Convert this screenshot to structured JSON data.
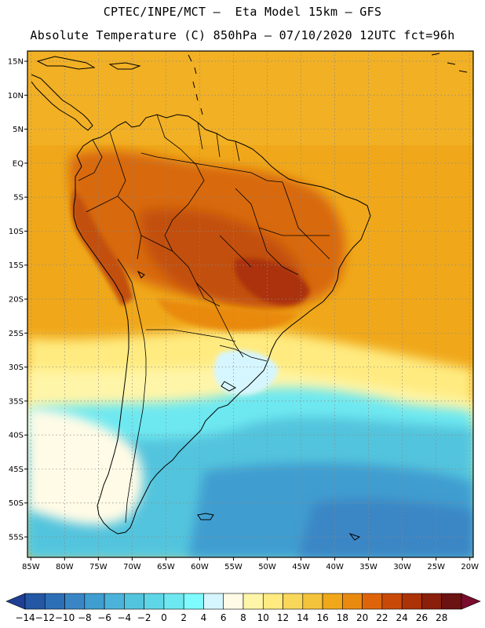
{
  "header": {
    "line1": "CPTEC/INPE/MCT –  Eta Model 15km – GFS",
    "line2": "Absolute Temperature (C) 850hPa – 07/10/2020 12UTC fct=96h"
  },
  "map": {
    "lat_ticks": [
      "15N",
      "10N",
      "5N",
      "EQ",
      "5S",
      "10S",
      "15S",
      "20S",
      "25S",
      "30S",
      "35S",
      "40S",
      "45S",
      "50S",
      "55S"
    ],
    "lon_ticks": [
      "85W",
      "80W",
      "75W",
      "70W",
      "65W",
      "60W",
      "55W",
      "50W",
      "45W",
      "40W",
      "35W",
      "30W",
      "25W",
      "20W"
    ],
    "lat_values": [
      15,
      10,
      5,
      0,
      -5,
      -10,
      -15,
      -20,
      -25,
      -30,
      -35,
      -40,
      -45,
      -50,
      -55
    ],
    "lon_values": [
      -85,
      -80,
      -75,
      -70,
      -65,
      -60,
      -55,
      -50,
      -45,
      -40,
      -35,
      -30,
      -25,
      -20
    ],
    "extent": {
      "lon_min": -85.5,
      "lon_max": -19.5,
      "lat_min": -58,
      "lat_max": 16.5
    }
  },
  "colorbar": {
    "labels": [
      "-14",
      "-12",
      "-10",
      "-8",
      "-6",
      "-4",
      "-2",
      "0",
      "2",
      "4",
      "6",
      "8",
      "10",
      "12",
      "14",
      "16",
      "18",
      "20",
      "22",
      "24",
      "26",
      "28"
    ],
    "colors": [
      "#1f3f94",
      "#2458a4",
      "#2c6fb6",
      "#3a86c5",
      "#3f9dd0",
      "#4bb3d9",
      "#53c4dd",
      "#5ed6e8",
      "#6ee8f0",
      "#7ffbff",
      "#d5f6ff",
      "#fffbe6",
      "#fff5a8",
      "#ffeb80",
      "#f8d75a",
      "#f4c33c",
      "#f0a81a",
      "#e98a10",
      "#de640a",
      "#c94a08",
      "#ab3307",
      "#8a200b",
      "#6b1212",
      "#7a0c2e"
    ]
  },
  "legend_colors": {
    "ocean_far": "#3fa5cf",
    "ocean_cold": "#4bbad8",
    "warm_orange": "#f0a81a",
    "hot": "#d8690e",
    "hotter": "#c24f0a",
    "border": "#000000"
  }
}
